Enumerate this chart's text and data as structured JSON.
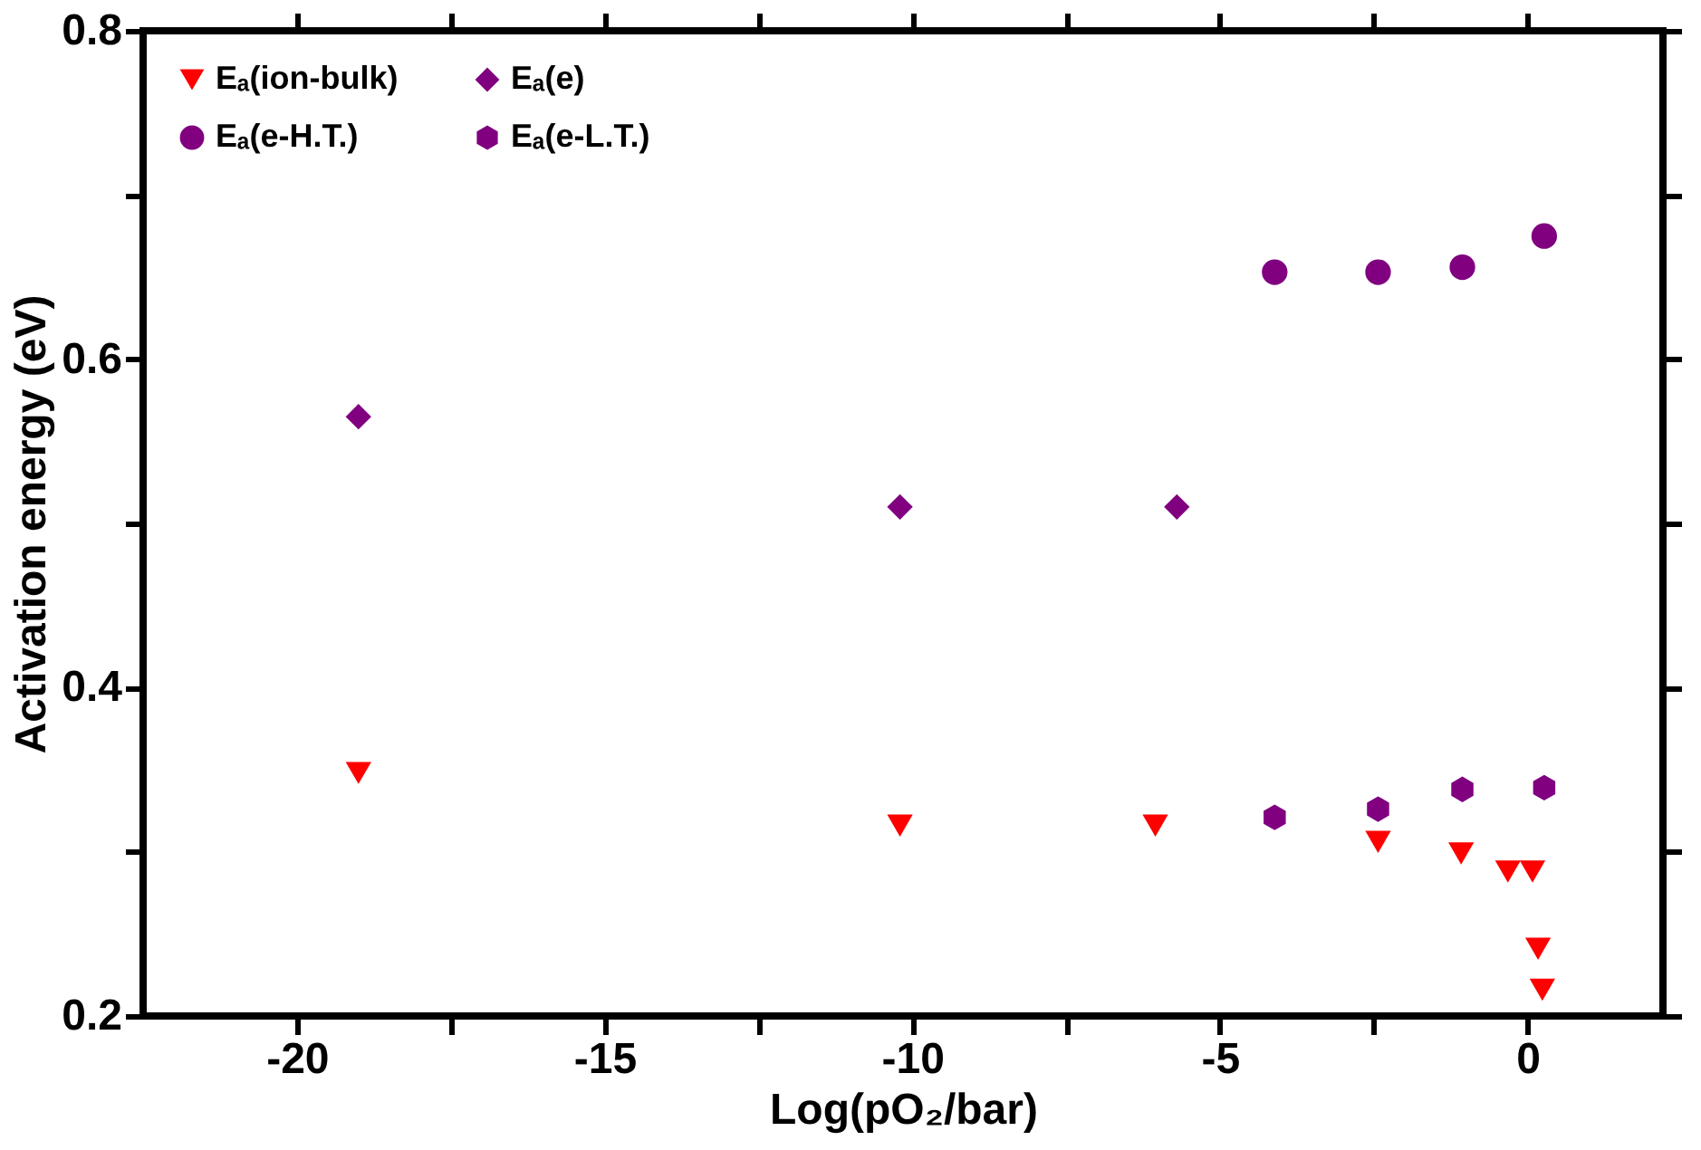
{
  "chart_data": {
    "type": "scatter",
    "xlabel": "Log(pO₂/bar)",
    "ylabel": "Activation energy (eV)",
    "xlim": [
      -22.5,
      2.2
    ],
    "ylim": [
      0.2,
      0.8
    ],
    "xticks": [
      -20,
      {
        "value": -17.5,
        "label": null
      },
      -15,
      {
        "value": -12.5,
        "label": null
      },
      -10,
      {
        "value": -7.5,
        "label": null
      },
      -5,
      {
        "value": -2.5,
        "label": null
      },
      0
    ],
    "yticks": [
      0.2,
      {
        "value": 0.3,
        "label": null
      },
      0.4,
      {
        "value": 0.5,
        "label": null
      },
      0.6,
      {
        "value": 0.7,
        "label": null
      },
      0.8
    ],
    "legend": "top left",
    "grid": false,
    "series": [
      {
        "name": "Eₐ(ion-bulk)",
        "color": "#ff0000",
        "marker": "triangle-down",
        "x": [
          -19.0,
          -10.2,
          -6.05,
          -2.43,
          -1.08,
          -0.32,
          0.08,
          0.17,
          0.24
        ],
        "values": [
          0.348,
          0.316,
          0.316,
          0.306,
          0.299,
          0.288,
          0.288,
          0.241,
          0.216
        ]
      },
      {
        "name": "Eₐ(e)",
        "color": "#800080",
        "marker": "diamond",
        "x": [
          -19.0,
          -10.2,
          -5.7
        ],
        "values": [
          0.565,
          0.51,
          0.51
        ]
      },
      {
        "name": "Eₐ(e-H.T.)",
        "color": "#800080",
        "marker": "circle",
        "x": [
          -4.11,
          -2.43,
          -1.06,
          0.27
        ],
        "values": [
          0.653,
          0.653,
          0.656,
          0.675
        ]
      },
      {
        "name": "Eₐ(e-L.T.)",
        "color": "#800080",
        "x": [
          -4.11,
          -2.43,
          -1.06,
          0.27
        ],
        "values": [
          0.321,
          0.326,
          0.338,
          0.339
        ]
      }
    ]
  }
}
